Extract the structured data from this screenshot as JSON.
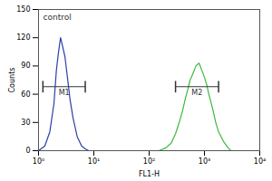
{
  "chart_data": {
    "type": "line",
    "x_label": "FL1-H",
    "y_label": "Counts",
    "log": "x",
    "xlim": [
      1,
      10000
    ],
    "xticks": [
      {
        "value": 1,
        "label": "10⁰"
      },
      {
        "value": 10,
        "label": "10¹"
      },
      {
        "value": 100,
        "label": "10²"
      },
      {
        "value": 1000,
        "label": "10³"
      },
      {
        "value": 10000,
        "label": "10⁴"
      }
    ],
    "ylim": [
      0,
      150
    ],
    "yticks": [
      0,
      30,
      60,
      90,
      120,
      150
    ],
    "annotations": [
      {
        "text": "control"
      }
    ],
    "series": [
      {
        "color": "#2a3fa8",
        "x": [
          1,
          1.3,
          1.6,
          1.9,
          2.1,
          2.3,
          2.5,
          2.7,
          3,
          3.3,
          3.7,
          4.2,
          5,
          6,
          7,
          8
        ],
        "values": [
          0,
          5,
          20,
          50,
          85,
          105,
          120,
          112,
          100,
          80,
          55,
          35,
          15,
          5,
          2,
          0
        ]
      },
      {
        "color": "#3cb83c",
        "x": [
          150,
          200,
          250,
          300,
          350,
          400,
          450,
          500,
          550,
          600,
          650,
          700,
          800,
          900,
          1000,
          1100,
          1200,
          1400,
          1600,
          1800,
          2200,
          2600,
          3000
        ],
        "values": [
          0,
          3,
          8,
          18,
          30,
          42,
          55,
          65,
          75,
          80,
          85,
          90,
          93,
          85,
          78,
          70,
          60,
          45,
          30,
          20,
          10,
          4,
          0
        ]
      }
    ],
    "markers": [
      {
        "label": "M1",
        "x_range": [
          1.2,
          7
        ],
        "y": 68
      },
      {
        "label": "M2",
        "x_range": [
          300,
          1800
        ],
        "y": 68
      }
    ]
  }
}
